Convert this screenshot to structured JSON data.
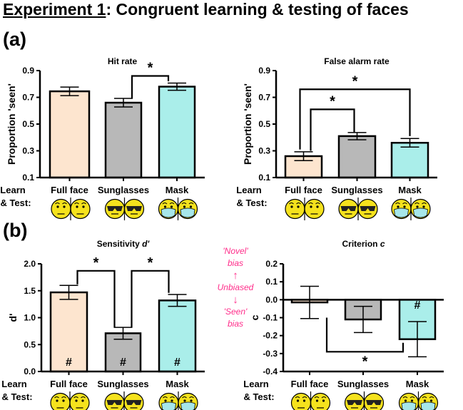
{
  "heading": {
    "underlined": "Experiment 1",
    "rest": ": Congruent learning & testing of faces"
  },
  "panel_labels": {
    "a": "(a)",
    "b": "(b)"
  },
  "learn_label": [
    "Learn",
    "& Test:"
  ],
  "bias_annotation": {
    "top": "'Novel'",
    "top2": "bias",
    "middle": "Unbiased",
    "bottom": "'Seen'",
    "bottom2": "bias",
    "up_arrow": "↑",
    "down_arrow": "↓"
  },
  "colors": {
    "full_face": "#fde5cf",
    "sunglasses": "#b8b8b8",
    "mask": "#aaeeea",
    "bias_text": "#ff2d8a"
  },
  "chart_data": [
    {
      "type": "bar",
      "title": "Hit rate",
      "title_italic": "",
      "ylabel": "Proportion 'seen'",
      "ylim": [
        0.1,
        0.9
      ],
      "yticks": [
        "0.1",
        "0.3",
        "0.5",
        "0.7",
        "0.9"
      ],
      "categories": [
        "Full face",
        "Sunglasses",
        "Mask"
      ],
      "faces": [
        "plain",
        "sunglasses",
        "mask"
      ],
      "values": [
        0.745,
        0.66,
        0.78
      ],
      "errors": [
        0.032,
        0.032,
        0.027
      ],
      "markers": [
        "",
        "",
        ""
      ],
      "significance": [
        {
          "from": 1,
          "to": 2,
          "label": "*"
        }
      ]
    },
    {
      "type": "bar",
      "title": "False alarm rate",
      "title_italic": "",
      "ylabel": "Proportion 'seen'",
      "ylim": [
        0.1,
        0.9
      ],
      "yticks": [
        "0.1",
        "0.3",
        "0.5",
        "0.7",
        "0.9"
      ],
      "categories": [
        "Full face",
        "Sunglasses",
        "Mask"
      ],
      "faces": [
        "plain",
        "sunglasses",
        "mask"
      ],
      "values": [
        0.26,
        0.41,
        0.36
      ],
      "errors": [
        0.033,
        0.027,
        0.032
      ],
      "markers": [
        "",
        "",
        ""
      ],
      "significance": [
        {
          "from": 0,
          "to": 1,
          "label": "*"
        },
        {
          "from": 0,
          "to": 2,
          "label": "*"
        }
      ]
    },
    {
      "type": "bar",
      "title": "Sensitivity ",
      "title_italic": "d'",
      "ylabel": "d'",
      "ylim": [
        0.0,
        2.0
      ],
      "yticks": [
        "0.0",
        "0.5",
        "1.0",
        "1.5",
        "2.0"
      ],
      "categories": [
        "Full face",
        "Sunglasses",
        "Mask"
      ],
      "faces": [
        "plain",
        "sunglasses",
        "mask"
      ],
      "values": [
        1.47,
        0.71,
        1.32
      ],
      "errors": [
        0.13,
        0.11,
        0.11
      ],
      "markers": [
        "#",
        "#",
        "#"
      ],
      "significance": [
        {
          "from": 0,
          "to": 1,
          "label": "*"
        },
        {
          "from": 1,
          "to": 2,
          "label": "*"
        }
      ]
    },
    {
      "type": "bar",
      "title": "Criterion ",
      "title_italic": "c",
      "ylabel": "c",
      "ylim": [
        -0.4,
        0.2
      ],
      "yticks": [
        "-0.4",
        "-0.3",
        "-0.2",
        "-0.1",
        "0.0",
        "0.1",
        "0.2"
      ],
      "categories": [
        "Full face",
        "Sunglasses",
        "Mask"
      ],
      "faces": [
        "plain",
        "sunglasses",
        "mask"
      ],
      "values": [
        -0.015,
        -0.11,
        -0.22
      ],
      "errors": [
        0.09,
        0.073,
        0.098
      ],
      "markers": [
        "",
        "",
        "#"
      ],
      "significance": [
        {
          "from": 0,
          "to": 2,
          "label": "*",
          "below": true
        }
      ]
    }
  ]
}
